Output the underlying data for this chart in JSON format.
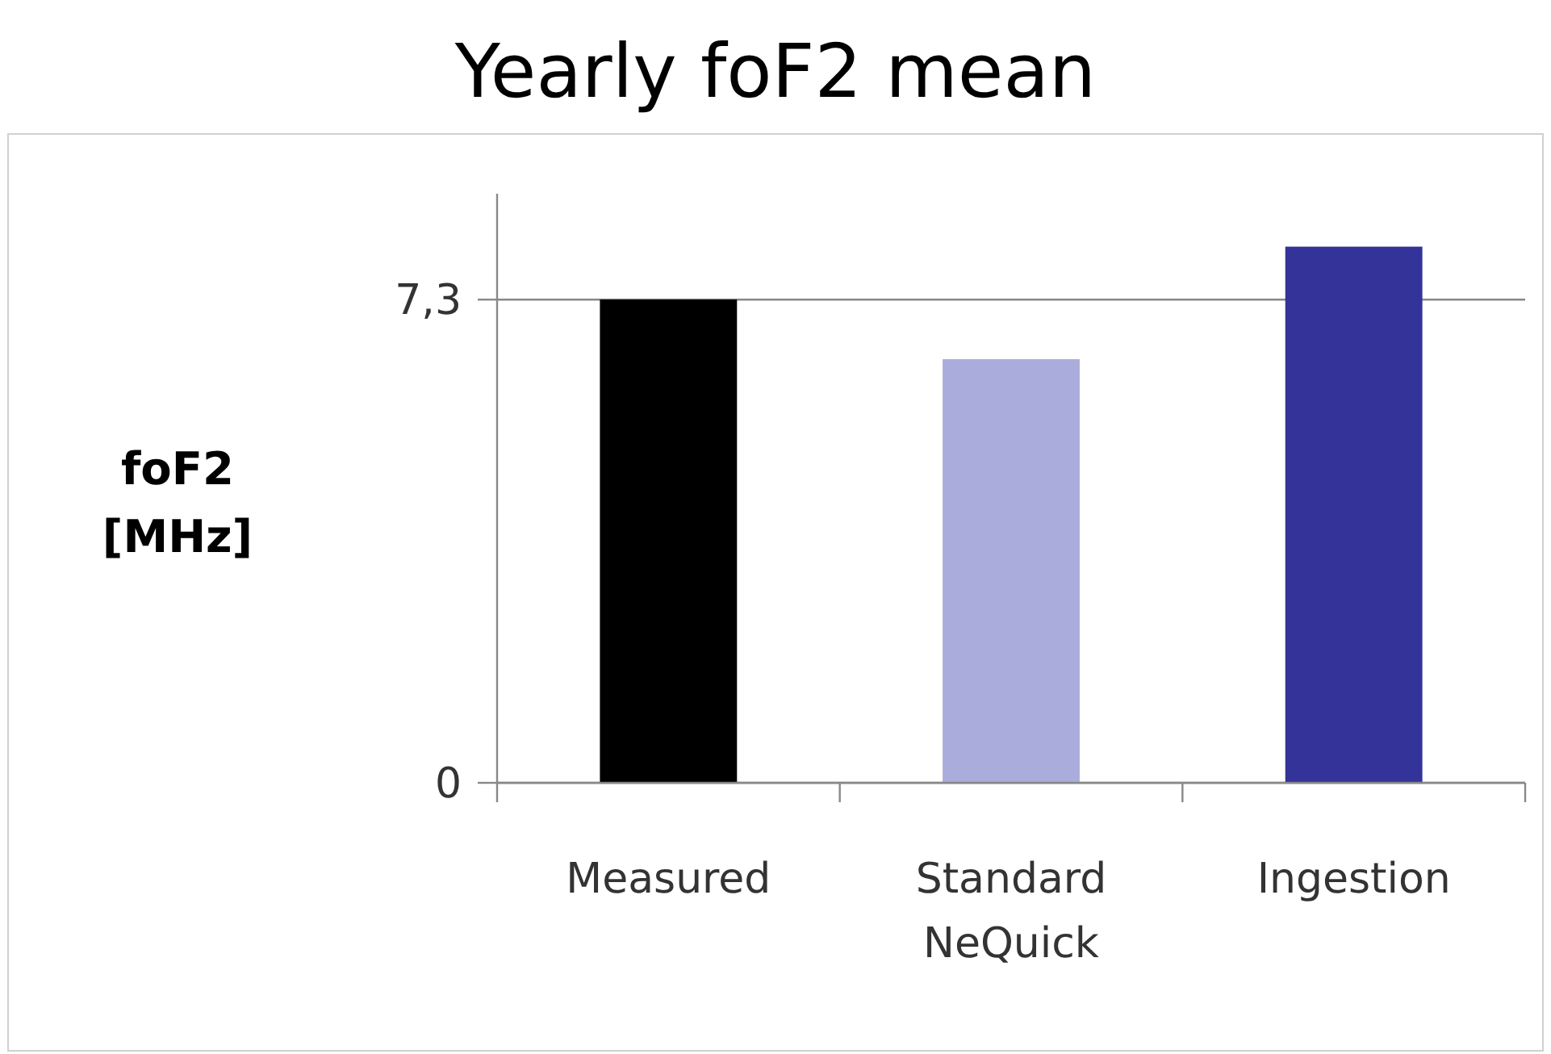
{
  "chart_data": {
    "type": "bar",
    "title": "Yearly foF2 mean",
    "ylabel": "foF2 [MHz]",
    "categories": [
      "Measured",
      "Standard NeQuick",
      "Ingestion"
    ],
    "values": [
      7.3,
      6.4,
      8.1
    ],
    "colors": [
      "#000000",
      "#aaaddb",
      "#333399"
    ],
    "ylim": [
      0,
      8.9
    ],
    "yticks": [
      0,
      {
        "value": 7.3,
        "label": "7,3"
      }
    ],
    "grid": "y"
  }
}
